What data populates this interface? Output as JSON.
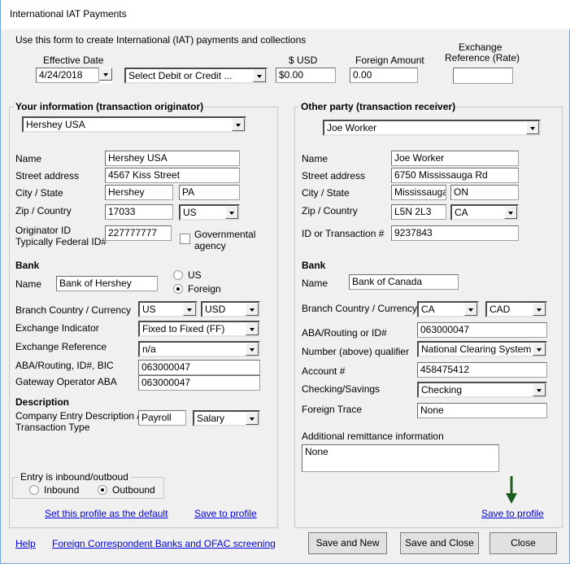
{
  "window": {
    "title": "International IAT Payments"
  },
  "header": {
    "intro": "Use this form to create International (IAT) payments and collections",
    "effective_date_label": "Effective Date",
    "effective_date": "4/24/2018",
    "debit_credit": "Select Debit or Credit ...",
    "usd_label": "$ USD",
    "usd": "$0.00",
    "foreign_label": "Foreign Amount",
    "foreign": "0.00",
    "exch_label1": "Exchange",
    "exch_label2": "Reference (Rate)",
    "exch": ""
  },
  "left": {
    "title": "Your information (transaction originator)",
    "profile": "Hershey USA",
    "name_label": "Name",
    "name": "Hershey USA",
    "street_label": "Street address",
    "street": "4567 Kiss Street",
    "city_label": "City / State",
    "city": "Hershey",
    "state": "PA",
    "zip_label": "Zip / Country",
    "zip": "17033",
    "country": "US",
    "orig_label1": "Originator ID",
    "orig_label2": "Typically Federal ID#",
    "orig": "227777777",
    "gov_label1": "Governmental",
    "gov_label2": "agency",
    "gov_checked": false,
    "bank_heading": "Bank",
    "bank_name_label": "Name",
    "bank_name": "Bank of Hershey",
    "radio_us": "US",
    "radio_foreign": "Foreign",
    "bank_type": "Foreign",
    "branch_label": "Branch Country / Currency",
    "branch_country": "US",
    "currency": "USD",
    "exind_label": "Exchange Indicator",
    "exind": "Fixed to Fixed (FF)",
    "exref_label": "Exchange Reference",
    "exref": "n/a",
    "aba_label": "ABA/Routing, ID#, BIC",
    "aba": "063000047",
    "gw_label": "Gateway Operator ABA",
    "gw": "063000047",
    "desc_heading": "Description",
    "desc_label1": "Company Entry Description /",
    "desc_label2": "Transaction Type",
    "desc": "Payroll",
    "txtype": "Salary",
    "entry_title": "Entry is inbound/outboud",
    "inbound": "Inbound",
    "outbound": "Outbound",
    "direction": "Outbound",
    "set_default": "Set this profile as the default",
    "save_profile": "Save to profile"
  },
  "right": {
    "title": "Other party (transaction receiver)",
    "profile": "Joe Worker",
    "name_label": "Name",
    "name": "Joe Worker",
    "street_label": "Street address",
    "street": "6750 Mississauga Rd",
    "city_label": "City / State",
    "city": "Mississauga",
    "state": "ON",
    "zip_label": "Zip / Country",
    "zip": "L5N 2L3",
    "country": "CA",
    "id_label": "ID or Transaction #",
    "id": "9237843",
    "bank_heading": "Bank",
    "bank_name_label": "Name",
    "bank_name": "Bank of Canada",
    "branch_label": "Branch Country / Currency",
    "branch_country": "CA",
    "currency": "CAD",
    "aba_label": "ABA/Routing or ID#",
    "aba": "063000047",
    "qual_label": "Number (above) qualifier",
    "qual": "National Clearing System",
    "acct_label": "Account #",
    "acct": "458475412",
    "cs_label": "Checking/Savings",
    "cs": "Checking",
    "ft_label": "Foreign Trace",
    "ft": "None",
    "remit_label": "Additional remittance information",
    "remit": "None",
    "save_profile": "Save to profile"
  },
  "footer": {
    "help": "Help",
    "ofac": "Foreign Correspondent Banks and OFAC screening",
    "save_new": "Save and New",
    "save_close": "Save and Close",
    "close": "Close"
  },
  "colors": {
    "link": "#0000e0",
    "arrow": "#1e5c1e",
    "window_border": "#6ea8dc"
  }
}
